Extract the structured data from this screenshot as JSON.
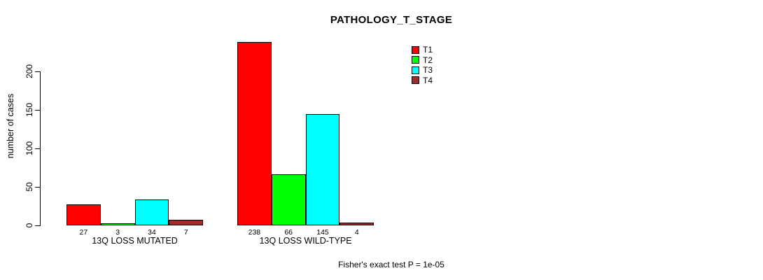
{
  "title": "PATHOLOGY_T_STAGE",
  "y_axis": {
    "label": "number of cases",
    "ticks": [
      0,
      50,
      100,
      150,
      200
    ]
  },
  "footer": "Fisher's exact test P = 1e-05",
  "chart_data": {
    "type": "bar",
    "title": "PATHOLOGY_T_STAGE",
    "xlabel": "",
    "ylabel": "number of cases",
    "categories": [
      "13Q LOSS MUTATED",
      "13Q LOSS WILD-TYPE"
    ],
    "series": [
      {
        "name": "T1",
        "color": "#ff0000",
        "values": [
          27,
          238
        ]
      },
      {
        "name": "T2",
        "color": "#00ff00",
        "values": [
          3,
          66
        ]
      },
      {
        "name": "T3",
        "color": "#00ffff",
        "values": [
          34,
          145
        ]
      },
      {
        "name": "T4",
        "color": "#a52a2a",
        "values": [
          7,
          4
        ]
      }
    ],
    "bar_value_labels": [
      [
        "27",
        "3",
        "34",
        "7"
      ],
      [
        "238",
        "66",
        "145",
        "4"
      ]
    ],
    "y_ticks": [
      0,
      50,
      100,
      150,
      200
    ],
    "ylim": [
      0,
      240
    ],
    "grid": false,
    "legend_position": "top-right",
    "legend_entries": [
      "T1",
      "T2",
      "T3",
      "T4"
    ],
    "annotation": "Fisher's exact test P = 1e-05"
  }
}
